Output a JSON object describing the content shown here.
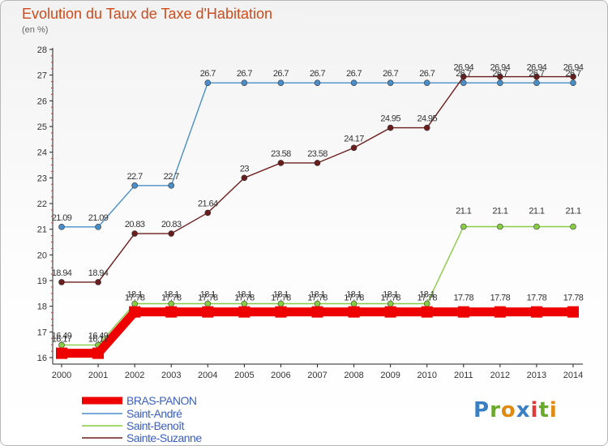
{
  "title": "Evolution du Taux de Taxe d'Habitation",
  "subtitle": "(en %)",
  "logo": "Proxiti",
  "chart_data": {
    "type": "line",
    "x": [
      2000,
      2001,
      2002,
      2003,
      2004,
      2005,
      2006,
      2007,
      2008,
      2009,
      2010,
      2011,
      2012,
      2013,
      2014
    ],
    "ylim": [
      16,
      28
    ],
    "yticks": [
      16,
      17,
      18,
      19,
      20,
      21,
      22,
      23,
      24,
      25,
      26,
      27,
      28
    ],
    "grid": false,
    "legend_position": "bottom-left",
    "series": [
      {
        "name": "BRAS-PANON",
        "color": "#ee0000",
        "values": [
          16.17,
          16.17,
          17.78,
          17.78,
          17.78,
          17.78,
          17.78,
          17.78,
          17.78,
          17.78,
          17.78,
          17.78,
          17.78,
          17.78,
          17.78
        ],
        "labels": [
          "16.17",
          "16.17",
          "17.78",
          "17.78",
          "17.78",
          "17.78",
          "17.78",
          "17.78",
          "17.78",
          "17.78",
          "17.78",
          "17.78",
          "17.78",
          "17.78",
          "17.78"
        ]
      },
      {
        "name": "Saint-André",
        "color": "#4a8ec9",
        "values": [
          21.09,
          21.09,
          22.7,
          22.7,
          26.7,
          26.7,
          26.7,
          26.7,
          26.7,
          26.7,
          26.7,
          26.7,
          26.7,
          26.7,
          26.7
        ],
        "labels": [
          "21.09",
          "21.09",
          "22.7",
          "22.7",
          "26.7",
          "26.7",
          "26.7",
          "26.7",
          "26.7",
          "26.7",
          "26.7",
          "26.7",
          "26.7",
          "26.7",
          "26.7"
        ]
      },
      {
        "name": "Saint-Benoît",
        "color": "#88cc44",
        "values": [
          16.49,
          16.49,
          18.1,
          18.1,
          18.1,
          18.1,
          18.1,
          18.1,
          18.1,
          18.1,
          18.1,
          21.1,
          21.1,
          21.1,
          21.1
        ],
        "labels": [
          "16.49",
          "16.49",
          "18.1",
          "18.1",
          "18.1",
          "18.1",
          "18.1",
          "18.1",
          "18.1",
          "18.1",
          "18.1",
          "21.1",
          "21.1",
          "21.1",
          "21.1"
        ]
      },
      {
        "name": "Sainte-Suzanne",
        "color": "#6b1d1d",
        "values": [
          18.94,
          18.94,
          20.83,
          20.83,
          21.64,
          23,
          23.58,
          23.58,
          24.17,
          24.95,
          24.95,
          26.94,
          26.94,
          26.94,
          26.94
        ],
        "labels": [
          "18.94",
          "18.94",
          "20.83",
          "20.83",
          "21.64",
          "23",
          "23.58",
          "23.58",
          "24.17",
          "24.95",
          "24.95",
          "26.94",
          "26.94",
          "26.94",
          "26.94"
        ]
      }
    ]
  }
}
